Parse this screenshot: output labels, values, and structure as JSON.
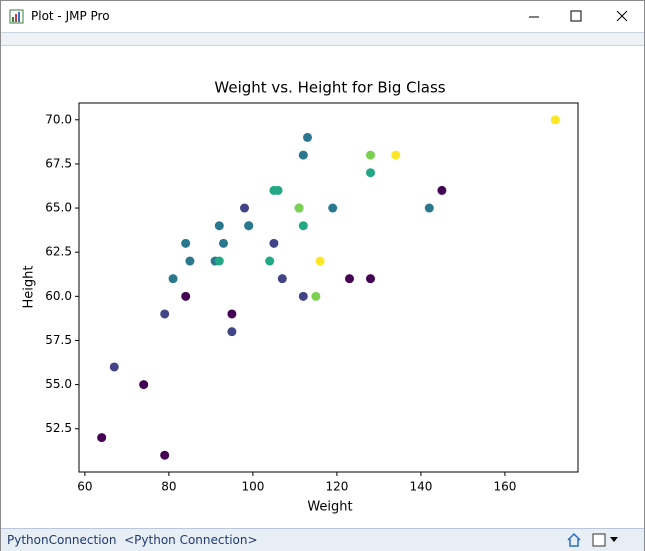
{
  "window": {
    "title": "Plot - JMP Pro",
    "status_text": "PythonConnection  <Python Connection>"
  },
  "chart_data": {
    "type": "scatter",
    "title": "Weight vs. Height for Big Class",
    "xlabel": "Weight",
    "ylabel": "Height",
    "x": [
      95,
      123,
      74,
      145,
      64,
      84,
      128,
      79,
      112,
      107,
      67,
      98,
      105,
      95,
      79,
      81,
      91,
      142,
      84,
      85,
      93,
      99,
      119,
      92,
      112,
      99,
      113,
      92,
      112,
      128,
      111,
      105,
      104,
      106,
      115,
      111,
      128,
      116,
      134,
      172
    ],
    "values": [
      59,
      61,
      55,
      66,
      52,
      60,
      61,
      51,
      60,
      61,
      56,
      65,
      63,
      58,
      59,
      61,
      62,
      65,
      63,
      62,
      63,
      64,
      65,
      64,
      68,
      64,
      69,
      62,
      64,
      67,
      65,
      66,
      62,
      66,
      60,
      65,
      68,
      62,
      68,
      70
    ],
    "colors": [
      "#440154",
      "#440154",
      "#440154",
      "#440154",
      "#440154",
      "#440154",
      "#440154",
      "#440154",
      "#414487",
      "#414487",
      "#414487",
      "#414487",
      "#414487",
      "#414487",
      "#414487",
      "#2a788e",
      "#2a788e",
      "#2a788e",
      "#2a788e",
      "#2a788e",
      "#2a788e",
      "#2a788e",
      "#2a788e",
      "#2a788e",
      "#2a788e",
      "#2a788e",
      "#2a788e",
      "#22a884",
      "#22a884",
      "#22a884",
      "#22a884",
      "#22a884",
      "#22a884",
      "#22a884",
      "#7ad151",
      "#7ad151",
      "#7ad151",
      "#fde725",
      "#fde725",
      "#fde725"
    ],
    "xlim": [
      58.6,
      177.4
    ],
    "ylim": [
      50.05,
      70.95
    ],
    "xticks": [
      60,
      80,
      100,
      120,
      140,
      160
    ],
    "yticks": [
      52.5,
      {
        "value": 55.0,
        "label": "55.0"
      },
      57.5,
      {
        "value": 60.0,
        "label": "60.0"
      },
      62.5,
      {
        "value": 65.0,
        "label": "65.0"
      },
      67.5,
      {
        "value": 70.0,
        "label": "70.0"
      }
    ]
  }
}
